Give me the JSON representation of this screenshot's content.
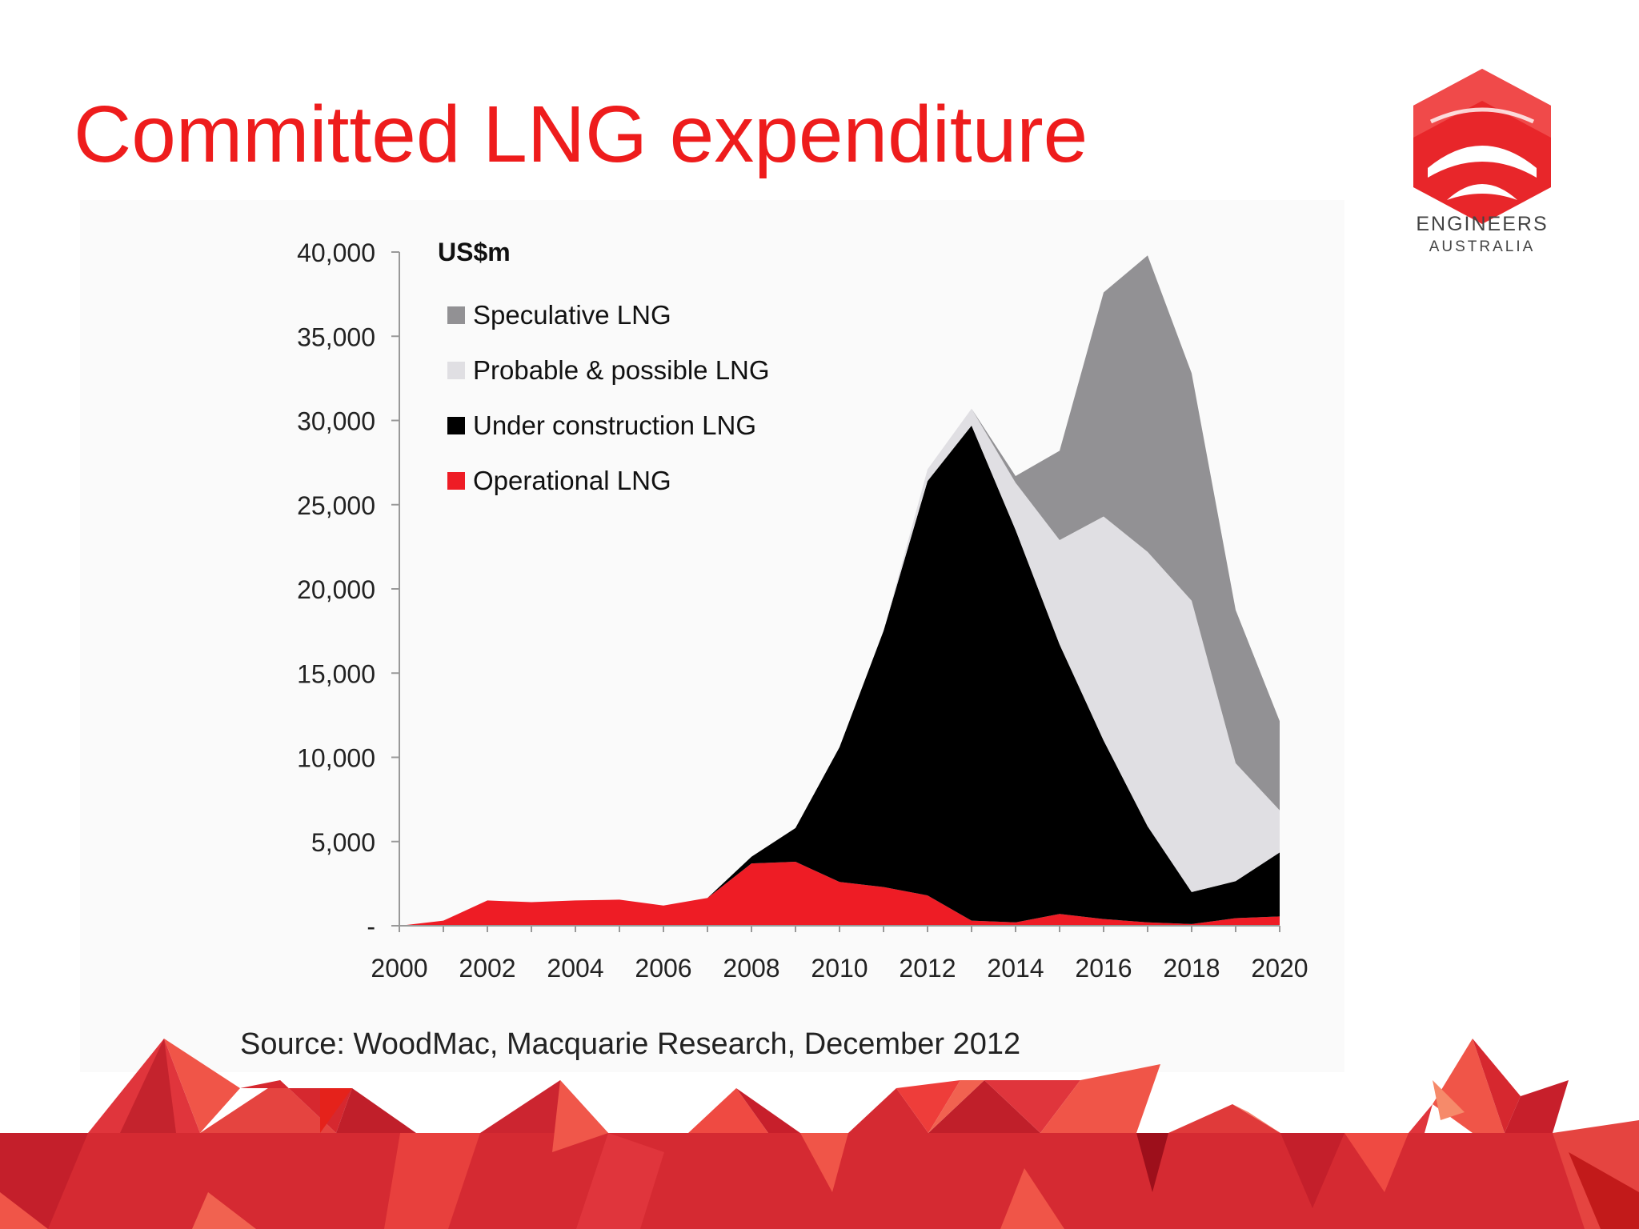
{
  "slide": {
    "title": "Committed LNG expenditure",
    "source": "Source: WoodMac, Macquarie Research, December 2012"
  },
  "logo": {
    "line1": "ENGINEERS",
    "line2": "AUSTRALIA",
    "color": "#e8262a"
  },
  "chart_data": {
    "type": "area",
    "stacked": true,
    "unit_label": "US$m",
    "x": [
      2000,
      2001,
      2002,
      2003,
      2004,
      2005,
      2006,
      2007,
      2008,
      2009,
      2010,
      2011,
      2012,
      2013,
      2014,
      2015,
      2016,
      2017,
      2018,
      2019,
      2020
    ],
    "x_tick_labels": [
      "2000",
      "2002",
      "2004",
      "2006",
      "2008",
      "2010",
      "2012",
      "2014",
      "2016",
      "2018",
      "2020"
    ],
    "y_tick_labels": [
      "-",
      "5,000",
      "10,000",
      "15,000",
      "20,000",
      "25,000",
      "30,000",
      "35,000",
      "40,000"
    ],
    "ylim": [
      0,
      40000
    ],
    "legend_position": "top-left",
    "series": [
      {
        "name": "Operational LNG",
        "color": "#ee1c25",
        "values": [
          0,
          300,
          1500,
          1400,
          1500,
          1550,
          1200,
          1650,
          3700,
          3800,
          2600,
          2300,
          1800,
          300,
          200,
          700,
          400,
          200,
          100,
          450,
          550
        ]
      },
      {
        "name": "Under construction LNG",
        "color": "#000000",
        "values": [
          0,
          0,
          0,
          0,
          0,
          0,
          0,
          0,
          400,
          2000,
          8000,
          15200,
          24600,
          29400,
          23300,
          16000,
          10600,
          5700,
          1900,
          2200,
          3800
        ]
      },
      {
        "name": "Probable & possible LNG",
        "color": "#e0dfe3",
        "values": [
          0,
          0,
          0,
          0,
          0,
          0,
          0,
          0,
          0,
          0,
          0,
          0,
          700,
          1000,
          2800,
          6200,
          13300,
          16300,
          17300,
          7000,
          2500
        ]
      },
      {
        "name": "Speculative LNG",
        "color": "#929194",
        "values": [
          0,
          0,
          0,
          0,
          0,
          0,
          0,
          0,
          0,
          0,
          0,
          0,
          0,
          0,
          400,
          5300,
          13300,
          17600,
          13500,
          9100,
          5300
        ]
      }
    ],
    "legend_order": [
      "Speculative LNG",
      "Probable & possible LNG",
      "Under construction LNG",
      "Operational LNG"
    ]
  }
}
